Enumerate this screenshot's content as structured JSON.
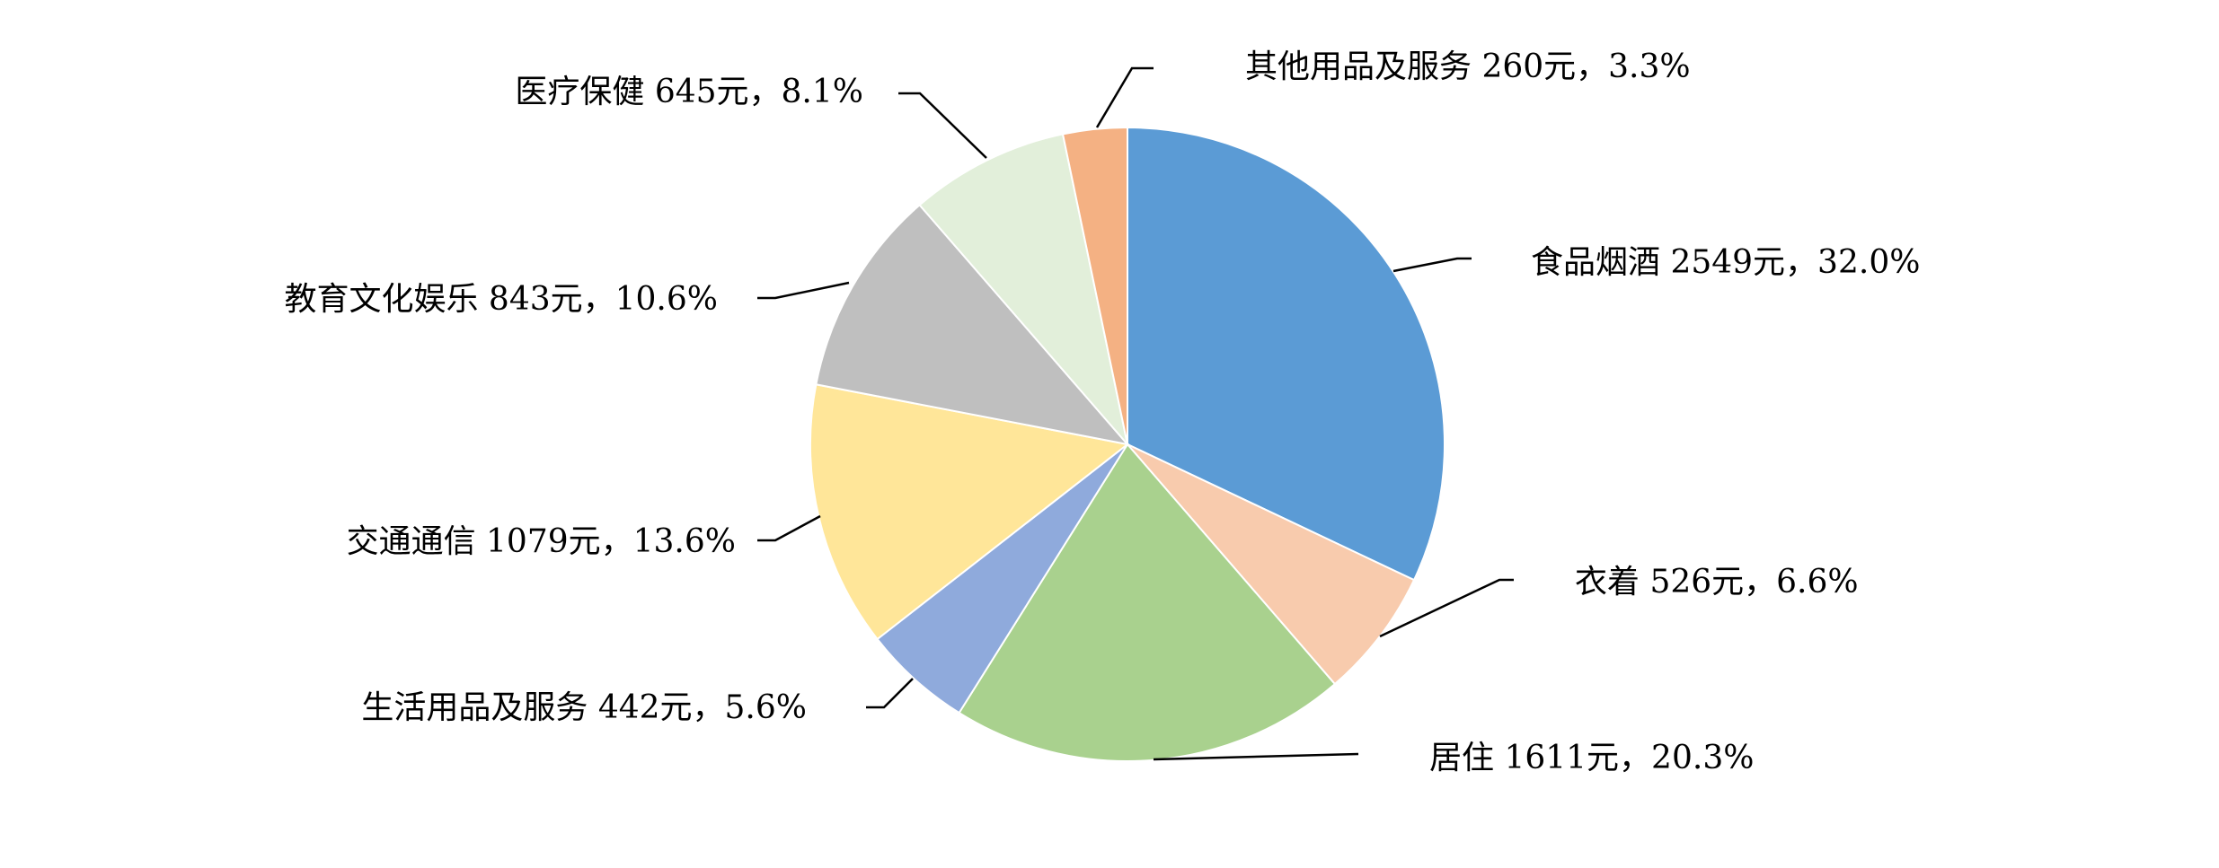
{
  "chart_data": {
    "type": "pie",
    "start_angle": "12 o'clock",
    "direction": "clockwise",
    "unit": "元",
    "slices": [
      {
        "name": "食品烟酒",
        "value": 2549,
        "percent": 32.0,
        "label": "食品烟酒 2549元，32.0%",
        "color": "#5B9BD5"
      },
      {
        "name": "衣着",
        "value": 526,
        "percent": 6.6,
        "label": "衣着 526元，6.6%",
        "color": "#F8CBAD"
      },
      {
        "name": "居住",
        "value": 1611,
        "percent": 20.3,
        "label": "居住 1611元，20.3%",
        "color": "#A9D18E"
      },
      {
        "name": "生活用品及服务",
        "value": 442,
        "percent": 5.6,
        "label": "生活用品及服务 442元，5.6%",
        "color": "#8FAADC"
      },
      {
        "name": "交通通信",
        "value": 1079,
        "percent": 13.6,
        "label": "交通通信 1079元，13.6%",
        "color": "#FFE699"
      },
      {
        "name": "教育文化娱乐",
        "value": 843,
        "percent": 10.6,
        "label": "教育文化娱乐 843元，10.6%",
        "color": "#BFBFBF"
      },
      {
        "name": "医疗保健",
        "value": 645,
        "percent": 8.1,
        "label": "医疗保健 645元，8.1%",
        "color": "#E2EFDA"
      },
      {
        "name": "其他用品及服务",
        "value": 260,
        "percent": 3.3,
        "label": "其他用品及服务 260元，3.3%",
        "color": "#F4B183"
      }
    ]
  }
}
